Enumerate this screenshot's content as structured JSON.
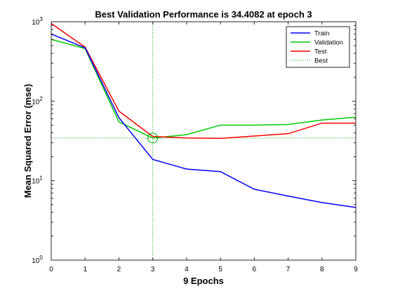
{
  "chart_data": {
    "type": "line",
    "title": "Best Validation Performance is 34.4082 at epoch 3",
    "xlabel": "9 Epochs",
    "ylabel": "Mean Squared Error  (mse)",
    "xlim": [
      0,
      9
    ],
    "ylim": [
      1,
      1000
    ],
    "yscale": "log",
    "x_ticks": [
      0,
      1,
      2,
      3,
      4,
      5,
      6,
      7,
      8,
      9
    ],
    "y_ticks": [
      {
        "value": 1,
        "base": "10",
        "exp": "0"
      },
      {
        "value": 10,
        "base": "10",
        "exp": "1"
      },
      {
        "value": 100,
        "base": "10",
        "exp": "2"
      },
      {
        "value": 1000,
        "base": "10",
        "exp": "3"
      }
    ],
    "x": [
      0,
      1,
      2,
      3,
      4,
      5,
      6,
      7,
      8,
      9
    ],
    "series": [
      {
        "name": "Train",
        "color": "#0000ff",
        "values": [
          700,
          470,
          62,
          18.5,
          14,
          13,
          7.8,
          6.4,
          5.3,
          4.6
        ]
      },
      {
        "name": "Validation",
        "color": "#00cc00",
        "values": [
          600,
          460,
          55,
          34.4,
          38,
          50,
          50,
          51,
          58,
          63
        ]
      },
      {
        "name": "Test",
        "color": "#ff0000",
        "values": [
          950,
          480,
          75,
          36,
          34.5,
          34,
          36.5,
          39,
          53,
          53
        ]
      }
    ],
    "best": {
      "name": "Best",
      "epoch": 3,
      "value": 34.4082,
      "color": "#00aa00"
    },
    "grid": false,
    "legend_position": "top-right"
  }
}
